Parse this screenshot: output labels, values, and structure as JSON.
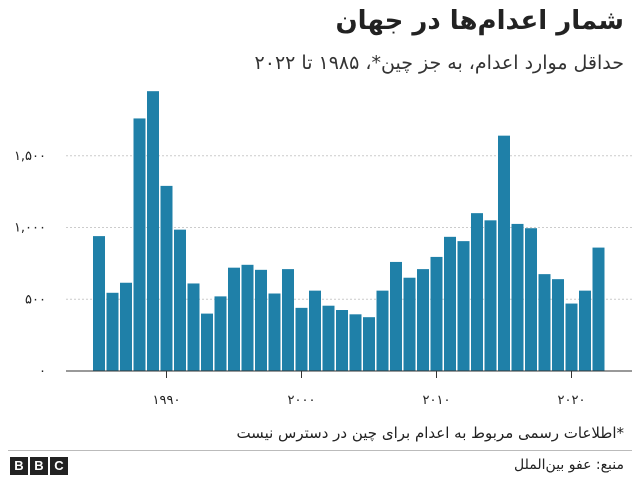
{
  "title": "شمار اعدام‌ها در جهان",
  "subtitle": "حداقل موارد اعدام، به جز چین*، ۱۹۸۵ تا ۲۰۲۲",
  "footnote": "*اطلاعات رسمی مربوط به اعدام برای چین در دسترس نیست",
  "source": "منبع: عفو بین‌الملل",
  "logo": [
    "B",
    "B",
    "C"
  ],
  "colors": {
    "bar": "#1f80a8",
    "grid": "#cccccc",
    "axis": "#333333",
    "text": "#222222"
  },
  "chart_data": {
    "type": "bar",
    "x": [
      1985,
      1986,
      1987,
      1988,
      1989,
      1990,
      1991,
      1992,
      1993,
      1994,
      1995,
      1996,
      1997,
      1998,
      1999,
      2000,
      2001,
      2002,
      2003,
      2004,
      2005,
      2006,
      2007,
      2008,
      2009,
      2010,
      2011,
      2012,
      2013,
      2014,
      2015,
      2016,
      2017,
      2018,
      2019,
      2020,
      2021,
      2022
    ],
    "values": [
      940,
      545,
      615,
      1760,
      1950,
      1290,
      985,
      610,
      400,
      520,
      720,
      740,
      705,
      540,
      710,
      440,
      560,
      455,
      425,
      395,
      375,
      560,
      760,
      650,
      710,
      795,
      935,
      905,
      1100,
      1050,
      1640,
      1025,
      995,
      675,
      640,
      470,
      560,
      860
    ],
    "ylim": [
      0,
      2000
    ],
    "yticks": [
      0,
      500,
      1000,
      1500
    ],
    "ytick_labels": [
      "۰",
      "۵۰۰",
      "۱,۰۰۰",
      "۱,۵۰۰"
    ],
    "xticks": [
      1990,
      2000,
      2010,
      2020
    ],
    "xtick_labels": [
      "۱۹۹۰",
      "۲۰۰۰",
      "۲۰۱۰",
      "۲۰۲۰"
    ],
    "grid": true,
    "legend": "none"
  }
}
